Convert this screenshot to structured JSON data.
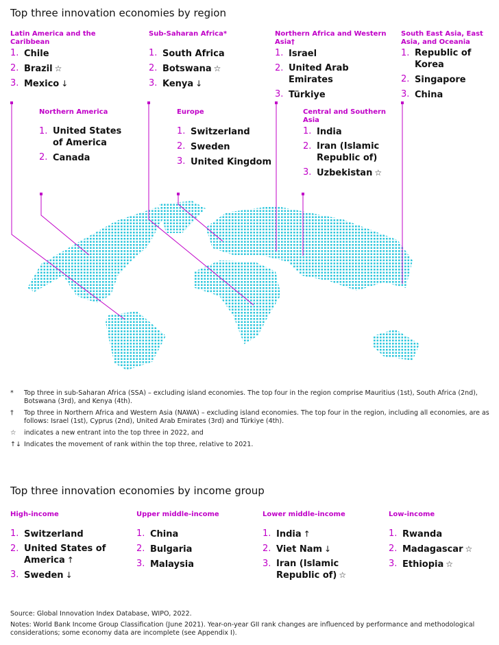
{
  "region_section": {
    "title": "Top three innovation economies by region",
    "groups": [
      {
        "name": "Latin America and the Caribbean",
        "items": [
          {
            "rank": "1.",
            "country": "Chile",
            "mark": ""
          },
          {
            "rank": "2.",
            "country": "Brazil",
            "mark": "☆"
          },
          {
            "rank": "3.",
            "country": "Mexico",
            "mark": "↓"
          }
        ]
      },
      {
        "name": "Sub-Saharan Africa*",
        "items": [
          {
            "rank": "1.",
            "country": "South Africa",
            "mark": ""
          },
          {
            "rank": "2.",
            "country": "Botswana",
            "mark": "☆"
          },
          {
            "rank": "3.",
            "country": "Kenya",
            "mark": "↓"
          }
        ]
      },
      {
        "name": "Northern Africa and Western Asia†",
        "items": [
          {
            "rank": "1.",
            "country": "Israel",
            "mark": ""
          },
          {
            "rank": "2.",
            "country": "United Arab Emirates",
            "mark": ""
          },
          {
            "rank": "3.",
            "country": "Türkiye",
            "mark": ""
          }
        ]
      },
      {
        "name": "South East Asia, East Asia, and Oceania",
        "items": [
          {
            "rank": "1.",
            "country": "Republic of Korea",
            "mark": ""
          },
          {
            "rank": "2.",
            "country": "Singapore",
            "mark": ""
          },
          {
            "rank": "3.",
            "country": "China",
            "mark": ""
          }
        ]
      },
      {
        "name": "Northern America",
        "items": [
          {
            "rank": "1.",
            "country": "United States of America",
            "mark": ""
          },
          {
            "rank": "2.",
            "country": "Canada",
            "mark": ""
          }
        ]
      },
      {
        "name": "Europe",
        "items": [
          {
            "rank": "1.",
            "country": "Switzerland",
            "mark": ""
          },
          {
            "rank": "2.",
            "country": "Sweden",
            "mark": ""
          },
          {
            "rank": "3.",
            "country": "United Kingdom",
            "mark": ""
          }
        ]
      },
      {
        "name": "Central and Southern Asia",
        "items": [
          {
            "rank": "1.",
            "country": "India",
            "mark": ""
          },
          {
            "rank": "2.",
            "country": "Iran (Islamic Republic of)",
            "mark": ""
          },
          {
            "rank": "3.",
            "country": "Uzbekistan",
            "mark": "☆"
          }
        ]
      }
    ]
  },
  "notes": [
    {
      "symbol": "*",
      "text": "Top three in sub-Saharan Africa (SSA) – excluding island economies. The top four in the region comprise Mauritius (1st), South Africa (2nd), Botswana (3rd), and Kenya (4th)."
    },
    {
      "symbol": "†",
      "text": "Top three in Northern Africa and Western Asia (NAWA) – excluding island economies. The top four in the region, including all economies, are as follows: Israel (1st), Cyprus (2nd), United Arab Emirates (3rd) and Türkiye (4th)."
    },
    {
      "symbol": "☆",
      "text": "indicates a new entrant into the top three in 2022, and"
    },
    {
      "symbol": "↑↓",
      "text": "Indicates the movement of rank within the top three, relative to 2021."
    }
  ],
  "income_section": {
    "title": "Top three innovation economies by income group",
    "groups": [
      {
        "name": "High-income",
        "items": [
          {
            "rank": "1.",
            "country": "Switzerland",
            "mark": ""
          },
          {
            "rank": "2.",
            "country": "United States of America",
            "mark": "↑"
          },
          {
            "rank": "3.",
            "country": "Sweden",
            "mark": "↓"
          }
        ]
      },
      {
        "name": "Upper middle-income",
        "items": [
          {
            "rank": "1.",
            "country": "China",
            "mark": ""
          },
          {
            "rank": "2.",
            "country": "Bulgaria",
            "mark": ""
          },
          {
            "rank": "3.",
            "country": "Malaysia",
            "mark": ""
          }
        ]
      },
      {
        "name": "Lower middle-income",
        "items": [
          {
            "rank": "1.",
            "country": "India",
            "mark": "↑"
          },
          {
            "rank": "2.",
            "country": "Viet Nam",
            "mark": "↓"
          },
          {
            "rank": "3.",
            "country": "Iran (Islamic Republic of)",
            "mark": "☆"
          }
        ]
      },
      {
        "name": "Low-income",
        "items": [
          {
            "rank": "1.",
            "country": "Rwanda",
            "mark": ""
          },
          {
            "rank": "2.",
            "country": "Madagascar",
            "mark": "☆"
          },
          {
            "rank": "3.",
            "country": "Ethiopia",
            "mark": "☆"
          }
        ]
      }
    ]
  },
  "source": "Source: Global Innovation Index Database, WIPO, 2022.",
  "footnote": "Notes: World Bank Income Group Classification (June 2021). Year-on-year GII rank changes are influenced by performance and methodological considerations; some economy data are incomplete (see Appendix I).",
  "colors": {
    "accent": "#c000c8",
    "map_dots": "#2cc6dc"
  }
}
